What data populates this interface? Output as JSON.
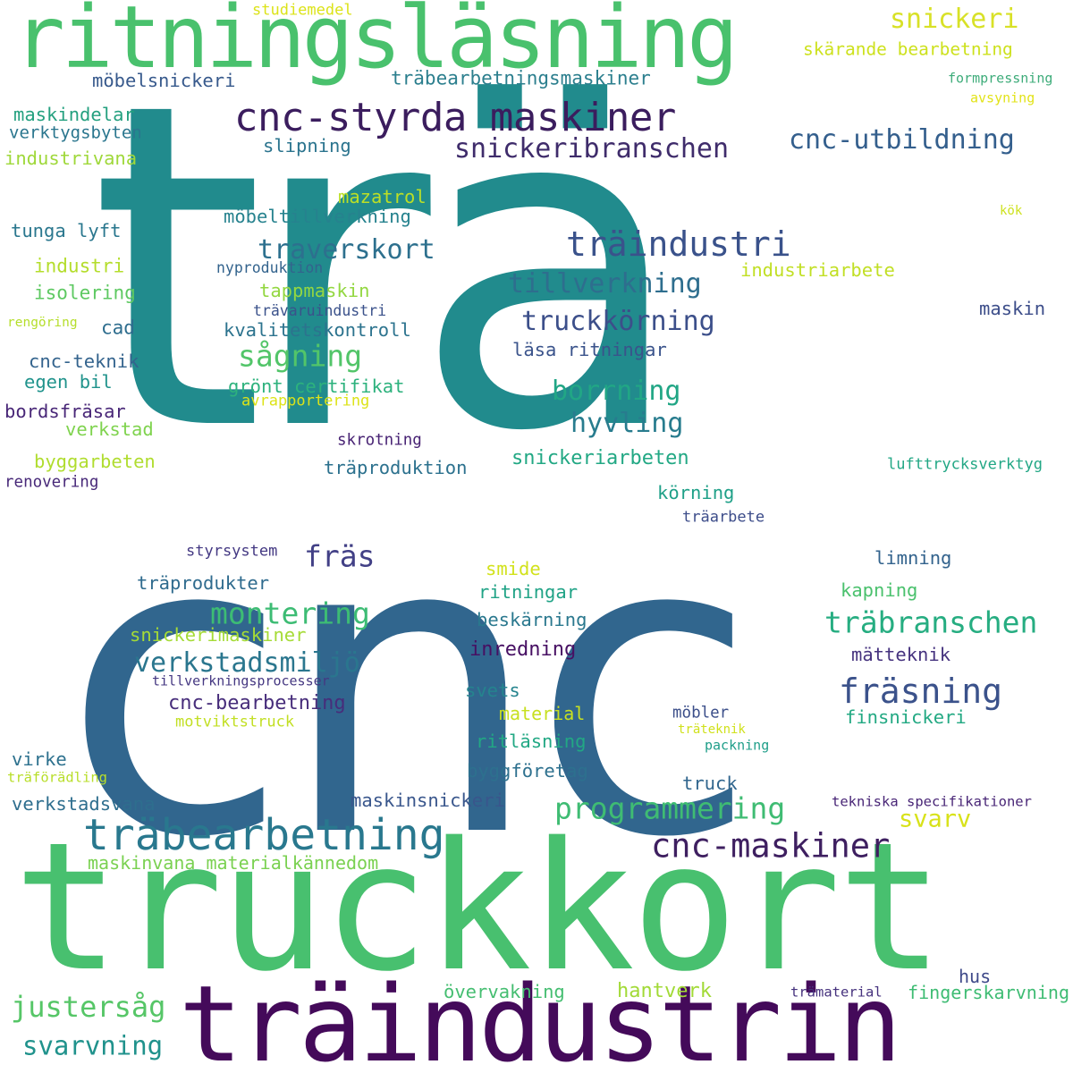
{
  "words": [
    {
      "text": "trä",
      "color": "#218b8d"
    },
    {
      "text": "cnc",
      "color": "#31668e"
    },
    {
      "text": "truckkort",
      "color": "#48c06f"
    },
    {
      "text": "träindustrin",
      "color": "#440a5a"
    },
    {
      "text": "ritningsläsning",
      "color": "#49c16d"
    },
    {
      "text": "cnc-styrda maskiner",
      "color": "#3b1d5e"
    },
    {
      "text": "snickeri",
      "color": "#d8e127"
    },
    {
      "text": "skärande bearbetning",
      "color": "#cde11d"
    },
    {
      "text": "träbearbetningsmaskiner",
      "color": "#2c7f8e"
    },
    {
      "text": "studiemedel",
      "color": "#dce319"
    },
    {
      "text": "formpressning",
      "color": "#3eac7a"
    },
    {
      "text": "avsyning",
      "color": "#e2e318"
    },
    {
      "text": "möbelsnickeri",
      "color": "#37598c"
    },
    {
      "text": "snickeribranschen",
      "color": "#3f2c6b"
    },
    {
      "text": "cnc-utbildning",
      "color": "#345f8d"
    },
    {
      "text": "maskindelar",
      "color": "#24a07f"
    },
    {
      "text": "verktygsbyten",
      "color": "#2a768e"
    },
    {
      "text": "industrivana",
      "color": "#9fd83a"
    },
    {
      "text": "slipning",
      "color": "#2b748e"
    },
    {
      "text": "mazatrol",
      "color": "#bcdf26"
    },
    {
      "text": "möbeltillverkning",
      "color": "#26828e"
    },
    {
      "text": "träindustri",
      "color": "#3a528b"
    },
    {
      "text": "kök",
      "color": "#cde11d"
    },
    {
      "text": "tunga lyft",
      "color": "#2a778e"
    },
    {
      "text": "traverskort",
      "color": "#2d708e"
    },
    {
      "text": "industri",
      "color": "#b4dd2c"
    },
    {
      "text": "nyproduktion",
      "color": "#33638d"
    },
    {
      "text": "industriarbete",
      "color": "#c1df24"
    },
    {
      "text": "tillverkning",
      "color": "#2e6e8e"
    },
    {
      "text": "isolering",
      "color": "#5ec962"
    },
    {
      "text": "tappmaskin",
      "color": "#93d741"
    },
    {
      "text": "rengöring",
      "color": "#b5de2b"
    },
    {
      "text": "trävaruindustri",
      "color": "#3b528b"
    },
    {
      "text": "cad",
      "color": "#2e6d8e"
    },
    {
      "text": "kvalitetskontroll",
      "color": "#2c738e"
    },
    {
      "text": "truckkörning",
      "color": "#3c4f8a"
    },
    {
      "text": "maskin",
      "color": "#3d4e8a"
    },
    {
      "text": "sågning",
      "color": "#52c569"
    },
    {
      "text": "läsa ritningar",
      "color": "#3a538b"
    },
    {
      "text": "cnc-teknik",
      "color": "#33638d"
    },
    {
      "text": "egen bil",
      "color": "#20938c"
    },
    {
      "text": "grönt certifikat",
      "color": "#2db27d"
    },
    {
      "text": "borrning",
      "color": "#21a685"
    },
    {
      "text": "avrapportering",
      "color": "#dde318"
    },
    {
      "text": "bordsfräsar",
      "color": "#482677"
    },
    {
      "text": "hyvling",
      "color": "#287c8e"
    },
    {
      "text": "verkstad",
      "color": "#7fd34e"
    },
    {
      "text": "skrotning",
      "color": "#482374"
    },
    {
      "text": "byggarbeten",
      "color": "#b0dd2f"
    },
    {
      "text": "snickeriarbeten",
      "color": "#22a884"
    },
    {
      "text": "träproduktion",
      "color": "#2c718e"
    },
    {
      "text": "lufttrycksverktyg",
      "color": "#22a785"
    },
    {
      "text": "renovering",
      "color": "#482979"
    },
    {
      "text": "körning",
      "color": "#1fa088"
    },
    {
      "text": "träarbete",
      "color": "#3d4d8a"
    },
    {
      "text": "styrsystem",
      "color": "#443983"
    },
    {
      "text": "fräs",
      "color": "#424086"
    },
    {
      "text": "limning",
      "color": "#33638d"
    },
    {
      "text": "träprodukter",
      "color": "#2f6b8e"
    },
    {
      "text": "smide",
      "color": "#d2e21b"
    },
    {
      "text": "kapning",
      "color": "#4ac16d"
    },
    {
      "text": "montering",
      "color": "#3dbc74"
    },
    {
      "text": "ritningar",
      "color": "#20a386"
    },
    {
      "text": "träbranschen",
      "color": "#26ad81"
    },
    {
      "text": "snickerimaskiner",
      "color": "#a5db36"
    },
    {
      "text": "beskärning",
      "color": "#2a788e"
    },
    {
      "text": "verkstadsmiljö",
      "color": "#2a768e"
    },
    {
      "text": "inredning",
      "color": "#471063"
    },
    {
      "text": "mätteknik",
      "color": "#46337f"
    },
    {
      "text": "tillverkningsprocesser",
      "color": "#453882"
    },
    {
      "text": "svets",
      "color": "#25848e"
    },
    {
      "text": "fräsning",
      "color": "#3b528b"
    },
    {
      "text": "cnc-bearbetning",
      "color": "#472d7b"
    },
    {
      "text": "motviktstruck",
      "color": "#c2df23"
    },
    {
      "text": "material",
      "color": "#c8e020"
    },
    {
      "text": "möbler",
      "color": "#3c4f8a"
    },
    {
      "text": "finsnickeri",
      "color": "#23a983"
    },
    {
      "text": "träteknik",
      "color": "#d0e11c"
    },
    {
      "text": "ritläsning",
      "color": "#22a884"
    },
    {
      "text": "packning",
      "color": "#1f9e89"
    },
    {
      "text": "virke",
      "color": "#2d718e"
    },
    {
      "text": "träförädling",
      "color": "#b8de29"
    },
    {
      "text": "byggföretag",
      "color": "#2d708e"
    },
    {
      "text": "truck",
      "color": "#31668e"
    },
    {
      "text": "verkstadsvana",
      "color": "#2e6e8e"
    },
    {
      "text": "maskinsnickeri",
      "color": "#39568c"
    },
    {
      "text": "programmering",
      "color": "#3fbc73"
    },
    {
      "text": "tekniska specifikationer",
      "color": "#482576"
    },
    {
      "text": "svarv",
      "color": "#d8e219"
    },
    {
      "text": "träbearbetning",
      "color": "#29788e"
    },
    {
      "text": "cnc-maskiner",
      "color": "#3e1f60"
    },
    {
      "text": "maskinvana materialkännedom",
      "color": "#7ad151"
    },
    {
      "text": "justersåg",
      "color": "#56c667"
    },
    {
      "text": "hus",
      "color": "#3e4989"
    },
    {
      "text": "övervakning",
      "color": "#45be71"
    },
    {
      "text": "hantverk",
      "color": "#a2da37"
    },
    {
      "text": "trämaterial",
      "color": "#46327e"
    },
    {
      "text": "fingerskarvning",
      "color": "#3ebc73"
    },
    {
      "text": "svarvning",
      "color": "#20928c"
    }
  ]
}
